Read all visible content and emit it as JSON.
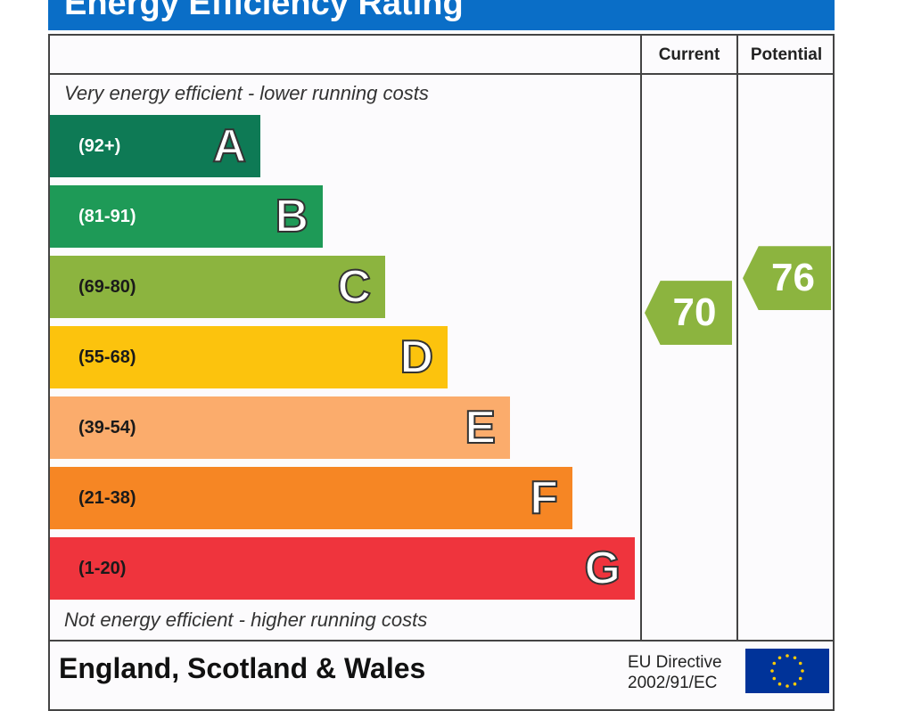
{
  "header": {
    "title": "Energy Efficiency Rating"
  },
  "columns": {
    "current": "Current",
    "potential": "Potential"
  },
  "captions": {
    "top": "Very energy efficient - lower running costs",
    "bottom": "Not energy efficient - higher running costs"
  },
  "chart_data": {
    "type": "bar",
    "title": "Energy Efficiency Rating",
    "categories": [
      "A",
      "B",
      "C",
      "D",
      "E",
      "F",
      "G"
    ],
    "bands": [
      {
        "letter": "A",
        "range": "(92+)",
        "color": "#0e7a55",
        "range_color": "#ffffff"
      },
      {
        "letter": "B",
        "range": "(81-91)",
        "color": "#1e9a57",
        "range_color": "#ffffff"
      },
      {
        "letter": "C",
        "range": "(69-80)",
        "color": "#8cb43f",
        "range_color": "#1a1a1a"
      },
      {
        "letter": "D",
        "range": "(55-68)",
        "color": "#fcc30d",
        "range_color": "#1a1a1a"
      },
      {
        "letter": "E",
        "range": "(39-54)",
        "color": "#fbac6c",
        "range_color": "#1a1a1a"
      },
      {
        "letter": "F",
        "range": "(21-38)",
        "color": "#f68624",
        "range_color": "#1a1a1a"
      },
      {
        "letter": "G",
        "range": "(1-20)",
        "color": "#ef343d",
        "range_color": "#1a1a1a"
      }
    ],
    "current": {
      "value": 70,
      "band": "C",
      "color": "#8cb43f"
    },
    "potential": {
      "value": 76,
      "band": "C",
      "color": "#8cb43f"
    }
  },
  "footer": {
    "country": "England, Scotland & Wales",
    "directive": "EU Directive\n2002/91/EC",
    "flag_icon": "eu-flag-icon"
  }
}
